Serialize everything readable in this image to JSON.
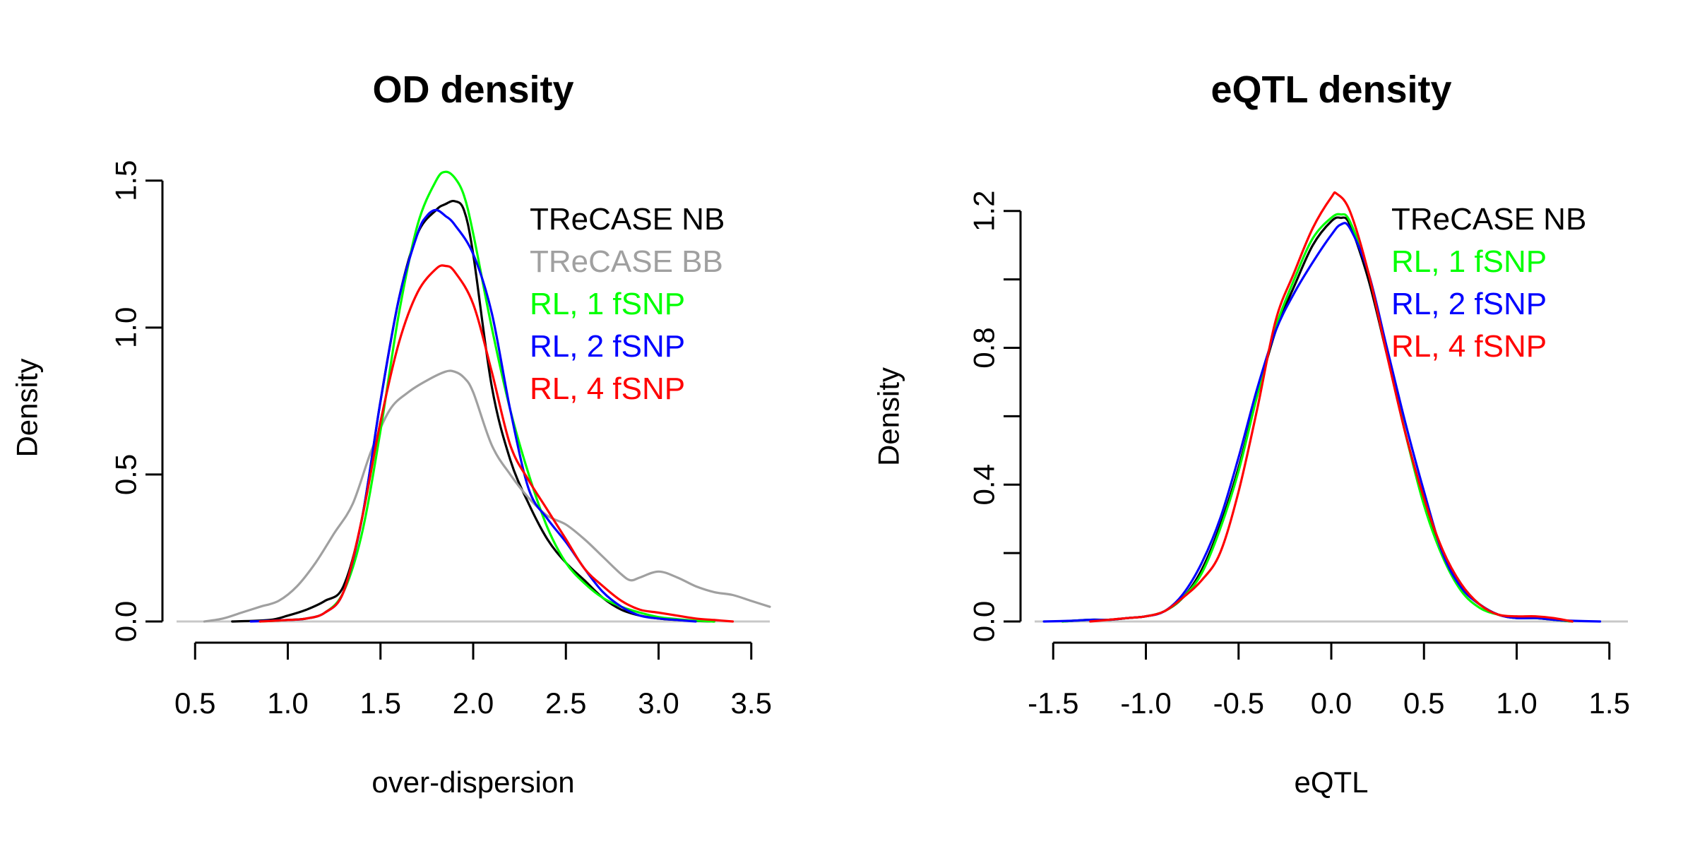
{
  "chart_data": [
    {
      "type": "line",
      "title": "OD density",
      "xlabel": "over-dispersion",
      "ylabel": "Density",
      "xlim": [
        0.4,
        3.6
      ],
      "ylim": [
        0,
        1.55
      ],
      "xticks": [
        0.5,
        1.0,
        1.5,
        2.0,
        2.5,
        3.0,
        3.5
      ],
      "xtick_labels": [
        "0.5",
        "1.0",
        "1.5",
        "2.0",
        "2.5",
        "3.0",
        "3.5"
      ],
      "yticks": [
        0.0,
        0.5,
        1.0,
        1.5
      ],
      "ytick_labels": [
        "0.0",
        "0.5",
        "1.0",
        "1.5"
      ],
      "grid": false,
      "legend_position": "top-right",
      "series": [
        {
          "name": "TReCASE NB",
          "color": "#000000",
          "x": [
            0.7,
            0.9,
            1.0,
            1.1,
            1.2,
            1.3,
            1.4,
            1.5,
            1.6,
            1.7,
            1.8,
            1.85,
            1.9,
            1.95,
            2.0,
            2.1,
            2.2,
            2.3,
            2.4,
            2.5,
            2.6,
            2.7,
            2.8,
            2.9,
            3.0,
            3.1,
            3.2,
            3.3
          ],
          "y": [
            0.0,
            0.005,
            0.02,
            0.04,
            0.07,
            0.12,
            0.35,
            0.75,
            1.1,
            1.32,
            1.4,
            1.42,
            1.43,
            1.4,
            1.25,
            0.8,
            0.55,
            0.4,
            0.28,
            0.2,
            0.14,
            0.08,
            0.04,
            0.02,
            0.01,
            0.005,
            0.002,
            0.0
          ]
        },
        {
          "name": "TReCASE BB",
          "color": "#a0a0a0",
          "x": [
            0.55,
            0.65,
            0.75,
            0.85,
            0.95,
            1.05,
            1.15,
            1.25,
            1.35,
            1.45,
            1.55,
            1.65,
            1.75,
            1.85,
            1.9,
            1.95,
            2.0,
            2.1,
            2.2,
            2.3,
            2.4,
            2.5,
            2.6,
            2.7,
            2.8,
            2.85,
            2.9,
            3.0,
            3.1,
            3.2,
            3.3,
            3.4,
            3.5,
            3.6
          ],
          "y": [
            0.0,
            0.01,
            0.03,
            0.05,
            0.07,
            0.12,
            0.2,
            0.3,
            0.4,
            0.58,
            0.72,
            0.78,
            0.82,
            0.85,
            0.85,
            0.83,
            0.78,
            0.6,
            0.5,
            0.42,
            0.36,
            0.33,
            0.28,
            0.22,
            0.16,
            0.14,
            0.15,
            0.17,
            0.15,
            0.12,
            0.1,
            0.09,
            0.07,
            0.05
          ]
        },
        {
          "name": "RL, 1 fSNP",
          "color": "#00ff00",
          "x": [
            0.85,
            1.0,
            1.1,
            1.2,
            1.3,
            1.4,
            1.5,
            1.6,
            1.7,
            1.8,
            1.85,
            1.9,
            1.95,
            2.0,
            2.1,
            2.2,
            2.3,
            2.4,
            2.5,
            2.6,
            2.7,
            2.8,
            2.9,
            3.0,
            3.1,
            3.2,
            3.3
          ],
          "y": [
            0.0,
            0.005,
            0.01,
            0.03,
            0.1,
            0.3,
            0.65,
            1.05,
            1.35,
            1.5,
            1.53,
            1.51,
            1.45,
            1.32,
            1.0,
            0.72,
            0.5,
            0.32,
            0.2,
            0.13,
            0.08,
            0.05,
            0.03,
            0.015,
            0.008,
            0.003,
            0.0
          ]
        },
        {
          "name": "RL, 2 fSNP",
          "color": "#0000ff",
          "x": [
            0.8,
            1.0,
            1.1,
            1.2,
            1.3,
            1.4,
            1.5,
            1.6,
            1.7,
            1.75,
            1.8,
            1.85,
            1.9,
            2.0,
            2.1,
            2.2,
            2.3,
            2.4,
            2.5,
            2.6,
            2.7,
            2.8,
            2.9,
            3.0,
            3.1,
            3.2
          ],
          "y": [
            0.0,
            0.005,
            0.01,
            0.03,
            0.1,
            0.35,
            0.75,
            1.1,
            1.32,
            1.38,
            1.4,
            1.38,
            1.35,
            1.25,
            1.05,
            0.72,
            0.45,
            0.35,
            0.27,
            0.18,
            0.1,
            0.05,
            0.02,
            0.01,
            0.005,
            0.0
          ]
        },
        {
          "name": "RL, 4 fSNP",
          "color": "#ff0000",
          "x": [
            0.85,
            1.0,
            1.1,
            1.2,
            1.3,
            1.4,
            1.5,
            1.6,
            1.7,
            1.8,
            1.85,
            1.9,
            2.0,
            2.1,
            2.2,
            2.3,
            2.4,
            2.5,
            2.6,
            2.7,
            2.8,
            2.9,
            3.0,
            3.1,
            3.2,
            3.3,
            3.4
          ],
          "y": [
            0.0,
            0.005,
            0.01,
            0.03,
            0.1,
            0.35,
            0.68,
            0.95,
            1.12,
            1.2,
            1.21,
            1.19,
            1.08,
            0.85,
            0.6,
            0.48,
            0.38,
            0.28,
            0.18,
            0.12,
            0.07,
            0.04,
            0.03,
            0.02,
            0.01,
            0.005,
            0.0
          ]
        }
      ]
    },
    {
      "type": "line",
      "title": "eQTL density",
      "xlabel": "eQTL",
      "ylabel": "Density",
      "xlim": [
        -1.6,
        1.6
      ],
      "ylim": [
        0,
        1.28
      ],
      "xticks": [
        -1.5,
        -1.0,
        -0.5,
        0.0,
        0.5,
        1.0,
        1.5
      ],
      "xtick_labels": [
        "-1.5",
        "-1.0",
        "-0.5",
        "0.0",
        "0.5",
        "1.0",
        "1.5"
      ],
      "yticks": [
        0.0,
        0.2,
        0.4,
        0.6,
        0.8,
        1.0,
        1.2
      ],
      "ytick_labels": [
        "0.0",
        "",
        "0.4",
        "",
        "0.8",
        "",
        "1.2"
      ],
      "grid": false,
      "legend_position": "top-right",
      "series": [
        {
          "name": "TReCASE NB",
          "color": "#000000",
          "x": [
            -1.45,
            -1.3,
            -1.2,
            -1.1,
            -1.0,
            -0.9,
            -0.8,
            -0.7,
            -0.6,
            -0.5,
            -0.4,
            -0.3,
            -0.2,
            -0.1,
            0.0,
            0.05,
            0.1,
            0.2,
            0.3,
            0.4,
            0.5,
            0.6,
            0.7,
            0.8,
            0.9,
            1.0,
            1.1,
            1.2,
            1.3
          ],
          "y": [
            0.0,
            0.005,
            0.005,
            0.01,
            0.015,
            0.03,
            0.07,
            0.15,
            0.28,
            0.45,
            0.66,
            0.85,
            0.98,
            1.1,
            1.17,
            1.18,
            1.16,
            1.0,
            0.78,
            0.55,
            0.35,
            0.2,
            0.1,
            0.05,
            0.02,
            0.01,
            0.01,
            0.005,
            0.0
          ]
        },
        {
          "name": "RL, 1 fSNP",
          "color": "#00ff00",
          "x": [
            -1.45,
            -1.3,
            -1.2,
            -1.1,
            -1.0,
            -0.9,
            -0.8,
            -0.7,
            -0.6,
            -0.5,
            -0.4,
            -0.3,
            -0.2,
            -0.1,
            0.0,
            0.05,
            0.1,
            0.2,
            0.3,
            0.4,
            0.5,
            0.6,
            0.7,
            0.8,
            0.9,
            1.0,
            1.1,
            1.2,
            1.3
          ],
          "y": [
            0.0,
            0.005,
            0.005,
            0.01,
            0.015,
            0.03,
            0.07,
            0.14,
            0.27,
            0.44,
            0.66,
            0.86,
            1.0,
            1.12,
            1.18,
            1.19,
            1.17,
            1.02,
            0.79,
            0.55,
            0.34,
            0.19,
            0.09,
            0.04,
            0.02,
            0.01,
            0.01,
            0.005,
            0.0
          ]
        },
        {
          "name": "RL, 2 fSNP",
          "color": "#0000ff",
          "x": [
            -1.55,
            -1.4,
            -1.3,
            -1.2,
            -1.1,
            -1.0,
            -0.9,
            -0.8,
            -0.7,
            -0.6,
            -0.5,
            -0.4,
            -0.3,
            -0.2,
            -0.1,
            0.0,
            0.05,
            0.1,
            0.2,
            0.3,
            0.4,
            0.5,
            0.6,
            0.7,
            0.8,
            0.9,
            1.0,
            1.1,
            1.2,
            1.3,
            1.45
          ],
          "y": [
            0.0,
            0.002,
            0.005,
            0.005,
            0.01,
            0.015,
            0.03,
            0.08,
            0.17,
            0.3,
            0.48,
            0.68,
            0.85,
            0.96,
            1.05,
            1.13,
            1.16,
            1.15,
            1.02,
            0.8,
            0.58,
            0.38,
            0.2,
            0.1,
            0.05,
            0.02,
            0.01,
            0.01,
            0.005,
            0.002,
            0.0
          ]
        },
        {
          "name": "RL, 4 fSNP",
          "color": "#ff0000",
          "x": [
            -1.3,
            -1.2,
            -1.1,
            -1.0,
            -0.9,
            -0.8,
            -0.7,
            -0.6,
            -0.5,
            -0.4,
            -0.3,
            -0.2,
            -0.1,
            0.0,
            0.03,
            0.1,
            0.2,
            0.3,
            0.4,
            0.5,
            0.6,
            0.7,
            0.8,
            0.9,
            1.0,
            1.1,
            1.2,
            1.3
          ],
          "y": [
            0.0,
            0.005,
            0.01,
            0.015,
            0.03,
            0.07,
            0.12,
            0.2,
            0.38,
            0.62,
            0.88,
            1.02,
            1.15,
            1.24,
            1.25,
            1.2,
            1.02,
            0.78,
            0.55,
            0.36,
            0.21,
            0.11,
            0.05,
            0.02,
            0.015,
            0.015,
            0.01,
            0.0
          ]
        }
      ]
    }
  ]
}
